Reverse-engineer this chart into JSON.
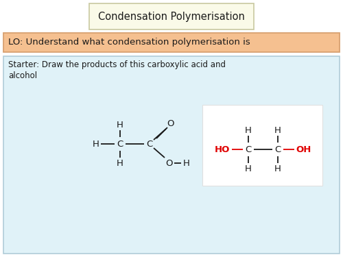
{
  "title": "Condensation Polymerisation",
  "lo_text": "LO: Understand what condensation polymerisation is",
  "starter_text": "Starter: Draw the products of this carboxylic acid and\nalcohol",
  "bg_color": "#ffffff",
  "title_box_color": "#fafae8",
  "title_box_edge": "#c8c8a0",
  "lo_box_color": "#f5c090",
  "lo_box_edge": "#d8a070",
  "main_box_color": "#e0f2f8",
  "main_box_edge": "#b0ccd8",
  "alcohol_box_color": "#ffffff",
  "alcohol_box_edge": "#e0e0e0",
  "text_color": "#1a1a1a",
  "red_color": "#e00000",
  "font_family": "DejaVu Sans"
}
